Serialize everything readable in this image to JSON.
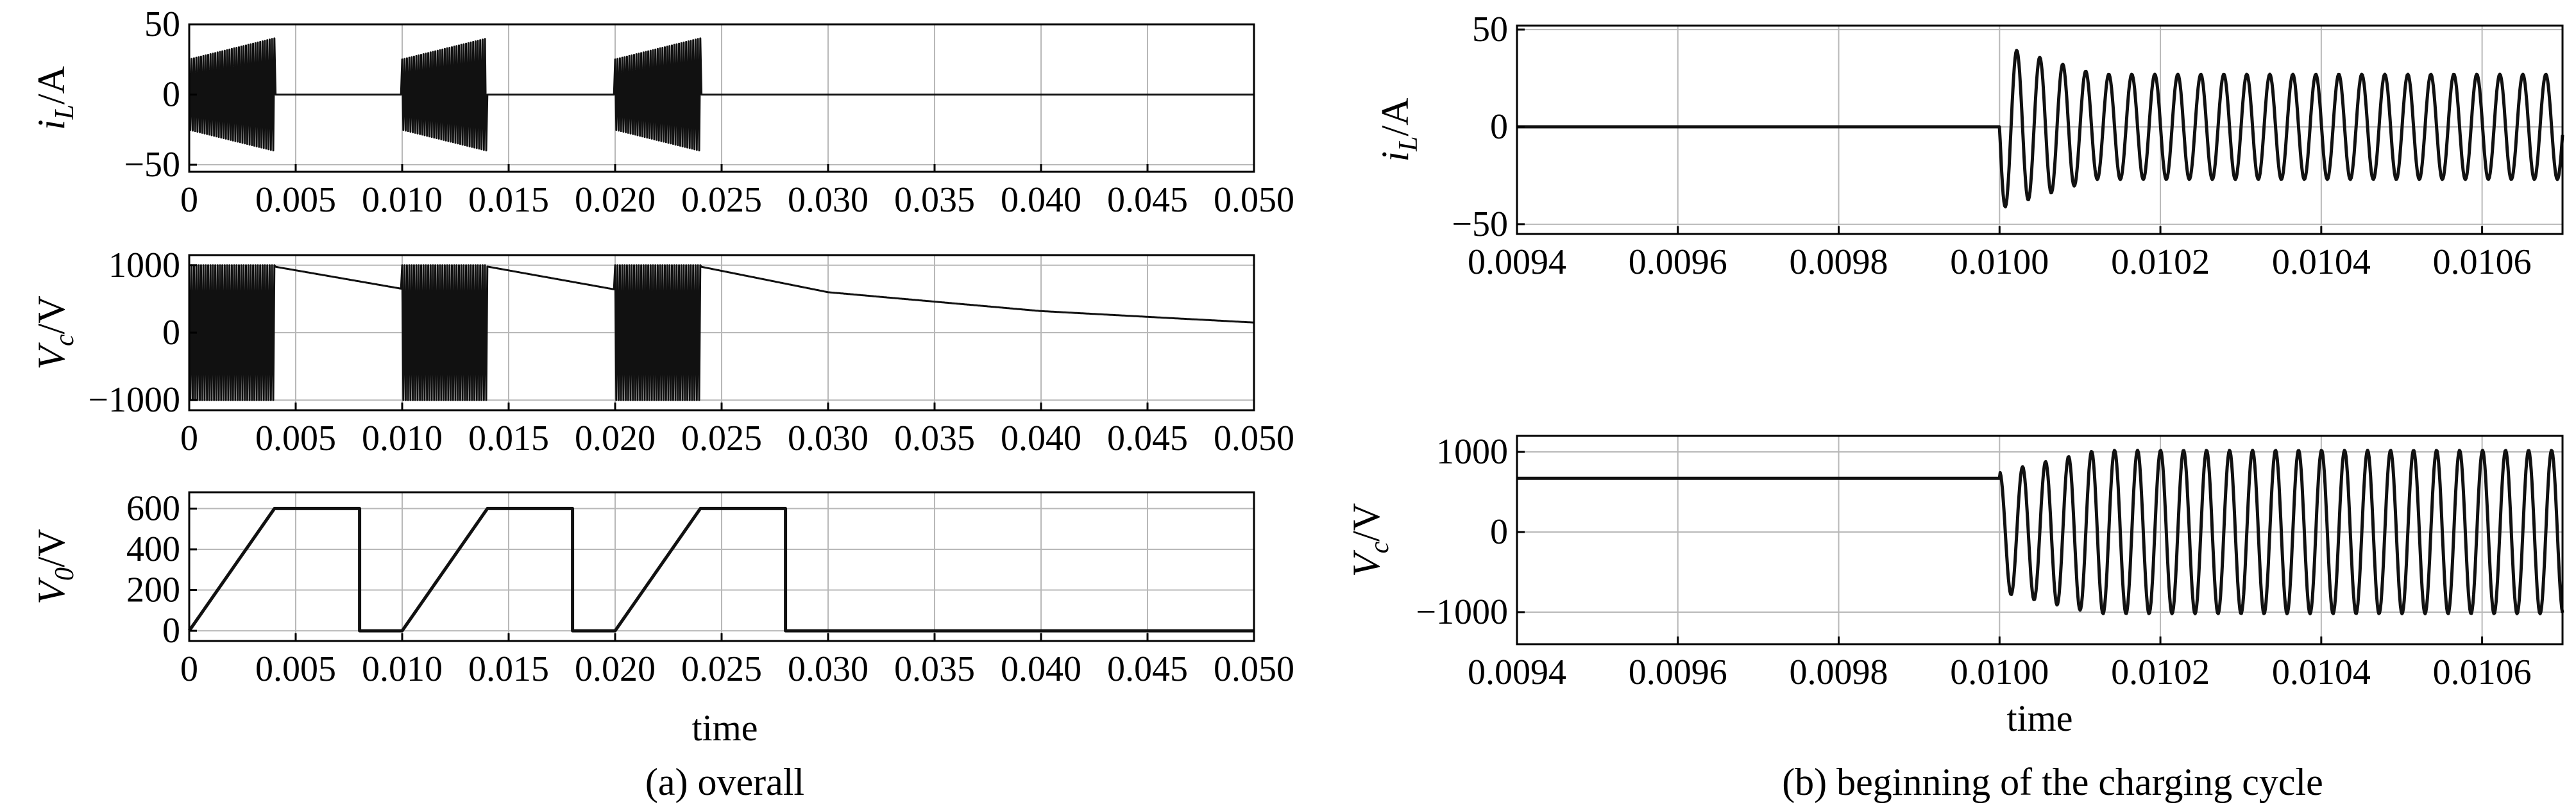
{
  "captions": {
    "left": "(a) overall",
    "right": "(b) beginning of the charging cycle"
  },
  "chart_data": [
    {
      "type": "line",
      "panel": "a1",
      "ylabel": {
        "symbol": "i",
        "sub": "L",
        "unit": "/A"
      },
      "xlim": [
        0,
        0.05
      ],
      "ylim": [
        -55,
        50
      ],
      "xticks": [
        "0",
        "0.005",
        "0.010",
        "0.015",
        "0.020",
        "0.025",
        "0.030",
        "0.035",
        "0.040",
        "0.045",
        "0.050"
      ],
      "yticks": [
        "50",
        "0",
        "−50"
      ],
      "grid": true,
      "series": [
        {
          "values_description": "",
          "bursts": [
            [
              0.0,
              0.004
            ],
            [
              0.01,
              0.014
            ],
            [
              0.02,
              0.024
            ]
          ],
          "burst_amp_start": 25,
          "burst_amp_end": 40,
          "idle": 0
        }
      ]
    },
    {
      "type": "line",
      "panel": "a2",
      "ylabel": {
        "symbol": "V",
        "sub": "c",
        "unit": "/V"
      },
      "xlim": [
        0,
        0.05
      ],
      "ylim": [
        -1150,
        1150
      ],
      "xticks": [
        "0",
        "0.005",
        "0.010",
        "0.015",
        "0.020",
        "0.025",
        "0.030",
        "0.035",
        "0.040",
        "0.045",
        "0.050"
      ],
      "yticks": [
        "1000",
        "0",
        "−1000"
      ],
      "grid": true,
      "series": [
        {
          "bursts": [
            [
              0.0,
              0.004
            ],
            [
              0.01,
              0.014
            ],
            [
              0.02,
              0.024
            ]
          ],
          "burst_amp": 1000,
          "decay_points": [
            [
              0.004,
              980
            ],
            [
              0.01,
              650
            ],
            [
              0.014,
              980
            ],
            [
              0.02,
              640
            ],
            [
              0.024,
              980
            ],
            [
              0.03,
              600
            ],
            [
              0.04,
              320
            ],
            [
              0.05,
              150
            ]
          ]
        }
      ]
    },
    {
      "type": "line",
      "panel": "a3",
      "ylabel": {
        "symbol": "V",
        "sub": "0",
        "unit": "/V"
      },
      "xlim": [
        0,
        0.05
      ],
      "ylim": [
        -50,
        680
      ],
      "xticks": [
        "0",
        "0.005",
        "0.010",
        "0.015",
        "0.020",
        "0.025",
        "0.030",
        "0.035",
        "0.040",
        "0.045",
        "0.050"
      ],
      "yticks": [
        "600",
        "400",
        "200",
        "0"
      ],
      "grid": true,
      "series": [
        {
          "points": [
            [
              0,
              0
            ],
            [
              0.004,
              600
            ],
            [
              0.008,
              600
            ],
            [
              0.008,
              0
            ],
            [
              0.01,
              0
            ],
            [
              0.014,
              600
            ],
            [
              0.018,
              600
            ],
            [
              0.018,
              0
            ],
            [
              0.02,
              0
            ],
            [
              0.024,
              600
            ],
            [
              0.028,
              600
            ],
            [
              0.028,
              0
            ],
            [
              0.05,
              0
            ]
          ]
        }
      ]
    },
    {
      "type": "line",
      "panel": "b1",
      "ylabel": {
        "symbol": "i",
        "sub": "L",
        "unit": "/A"
      },
      "xlim": [
        0.0094,
        0.0107
      ],
      "ylim": [
        -55,
        52
      ],
      "xticks": [
        "0.0094",
        "0.0096",
        "0.0098",
        "0.0100",
        "0.0102",
        "0.0104",
        "0.0106"
      ],
      "yticks": [
        "50",
        "0",
        "−50"
      ],
      "grid": true,
      "series": [
        {
          "idle_until": 0.01,
          "idle_value": 0,
          "osc_period": 2.86e-05,
          "amp_start": 42,
          "amp_steady": 27
        }
      ]
    },
    {
      "type": "line",
      "panel": "b2",
      "ylabel": {
        "symbol": "V",
        "sub": "c",
        "unit": "/V"
      },
      "xlim": [
        0.0094,
        0.0107
      ],
      "ylim": [
        -1400,
        1200
      ],
      "xticks": [
        "0.0094",
        "0.0096",
        "0.0098",
        "0.0100",
        "0.0102",
        "0.0104",
        "0.0106"
      ],
      "yticks": [
        "1000",
        "0",
        "−1000"
      ],
      "xlabel": "time",
      "grid": true,
      "series": [
        {
          "idle_until": 0.01,
          "idle_value": 670,
          "osc_period": 2.86e-05,
          "amp_start": 750,
          "amp_steady": 1020
        }
      ]
    }
  ],
  "left_xlabel": "time"
}
